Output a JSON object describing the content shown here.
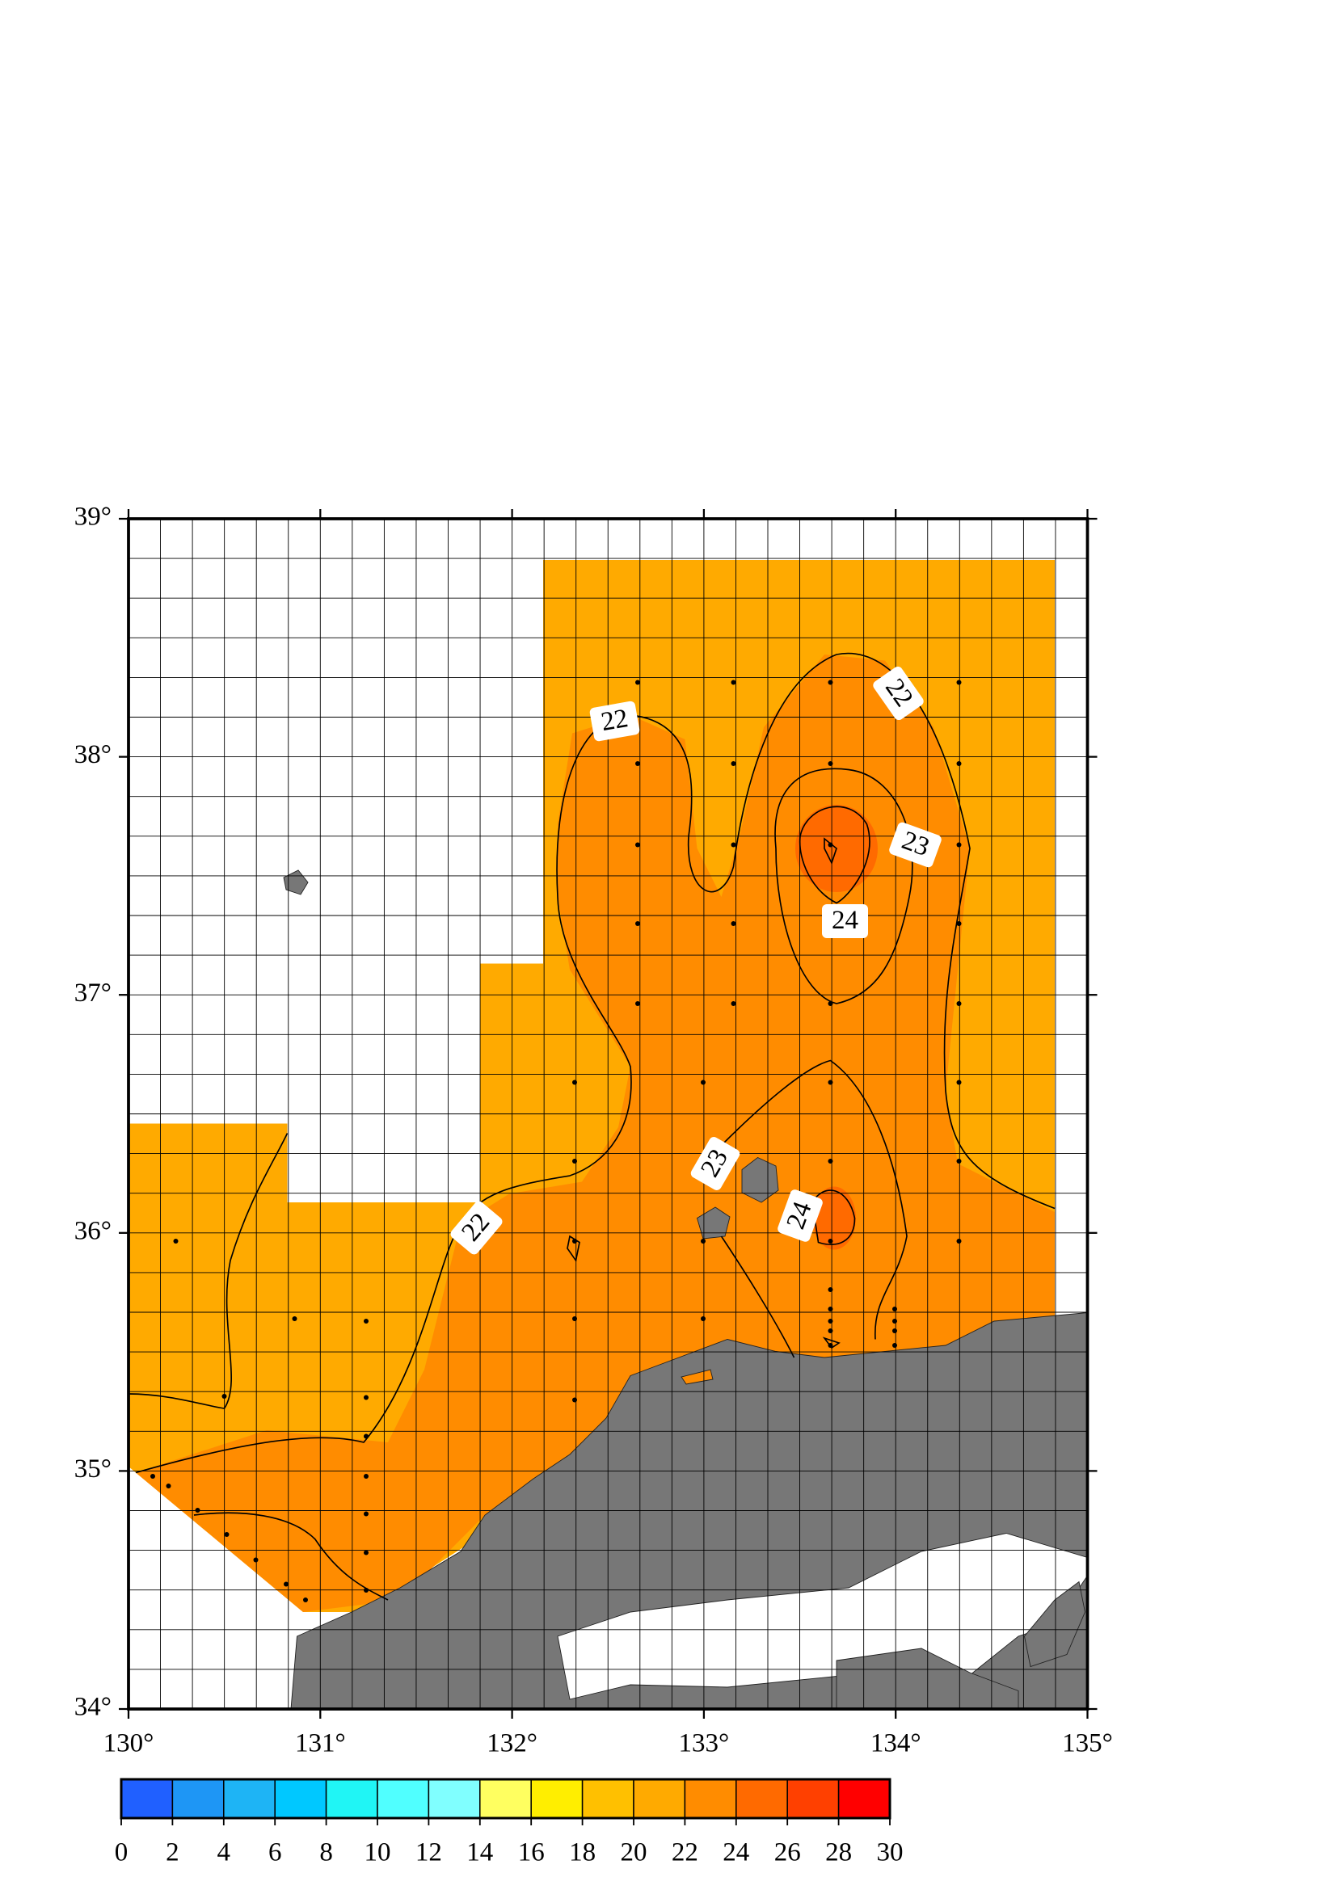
{
  "map": {
    "lon_ticks": [
      {
        "value": 130,
        "label": "130°"
      },
      {
        "value": 131,
        "label": "131°"
      },
      {
        "value": 132,
        "label": "132°"
      },
      {
        "value": 133,
        "label": "133°"
      },
      {
        "value": 134,
        "label": "134°"
      },
      {
        "value": 135,
        "label": "135°"
      }
    ],
    "lat_ticks": [
      {
        "value": 34,
        "label": "34°"
      },
      {
        "value": 35,
        "label": "35°"
      },
      {
        "value": 36,
        "label": "36°"
      },
      {
        "value": 37,
        "label": "37°"
      },
      {
        "value": 38,
        "label": "38°"
      },
      {
        "value": 39,
        "label": "39°"
      }
    ],
    "contour_labels": [
      "22",
      "22",
      "23",
      "24",
      "23",
      "24",
      "22"
    ],
    "colorbar": {
      "ticks": [
        0,
        2,
        4,
        6,
        8,
        10,
        12,
        14,
        16,
        18,
        20,
        22,
        24,
        26,
        28,
        30
      ],
      "colors": [
        "#2060ff",
        "#1e96f5",
        "#1eb4f5",
        "#00c8ff",
        "#20f5f5",
        "#50ffff",
        "#80ffff",
        "#ffff60",
        "#ffee00",
        "#ffc000",
        "#ffaa00",
        "#ff8c00",
        "#ff6a00",
        "#ff4000",
        "#ff0000"
      ]
    }
  }
}
